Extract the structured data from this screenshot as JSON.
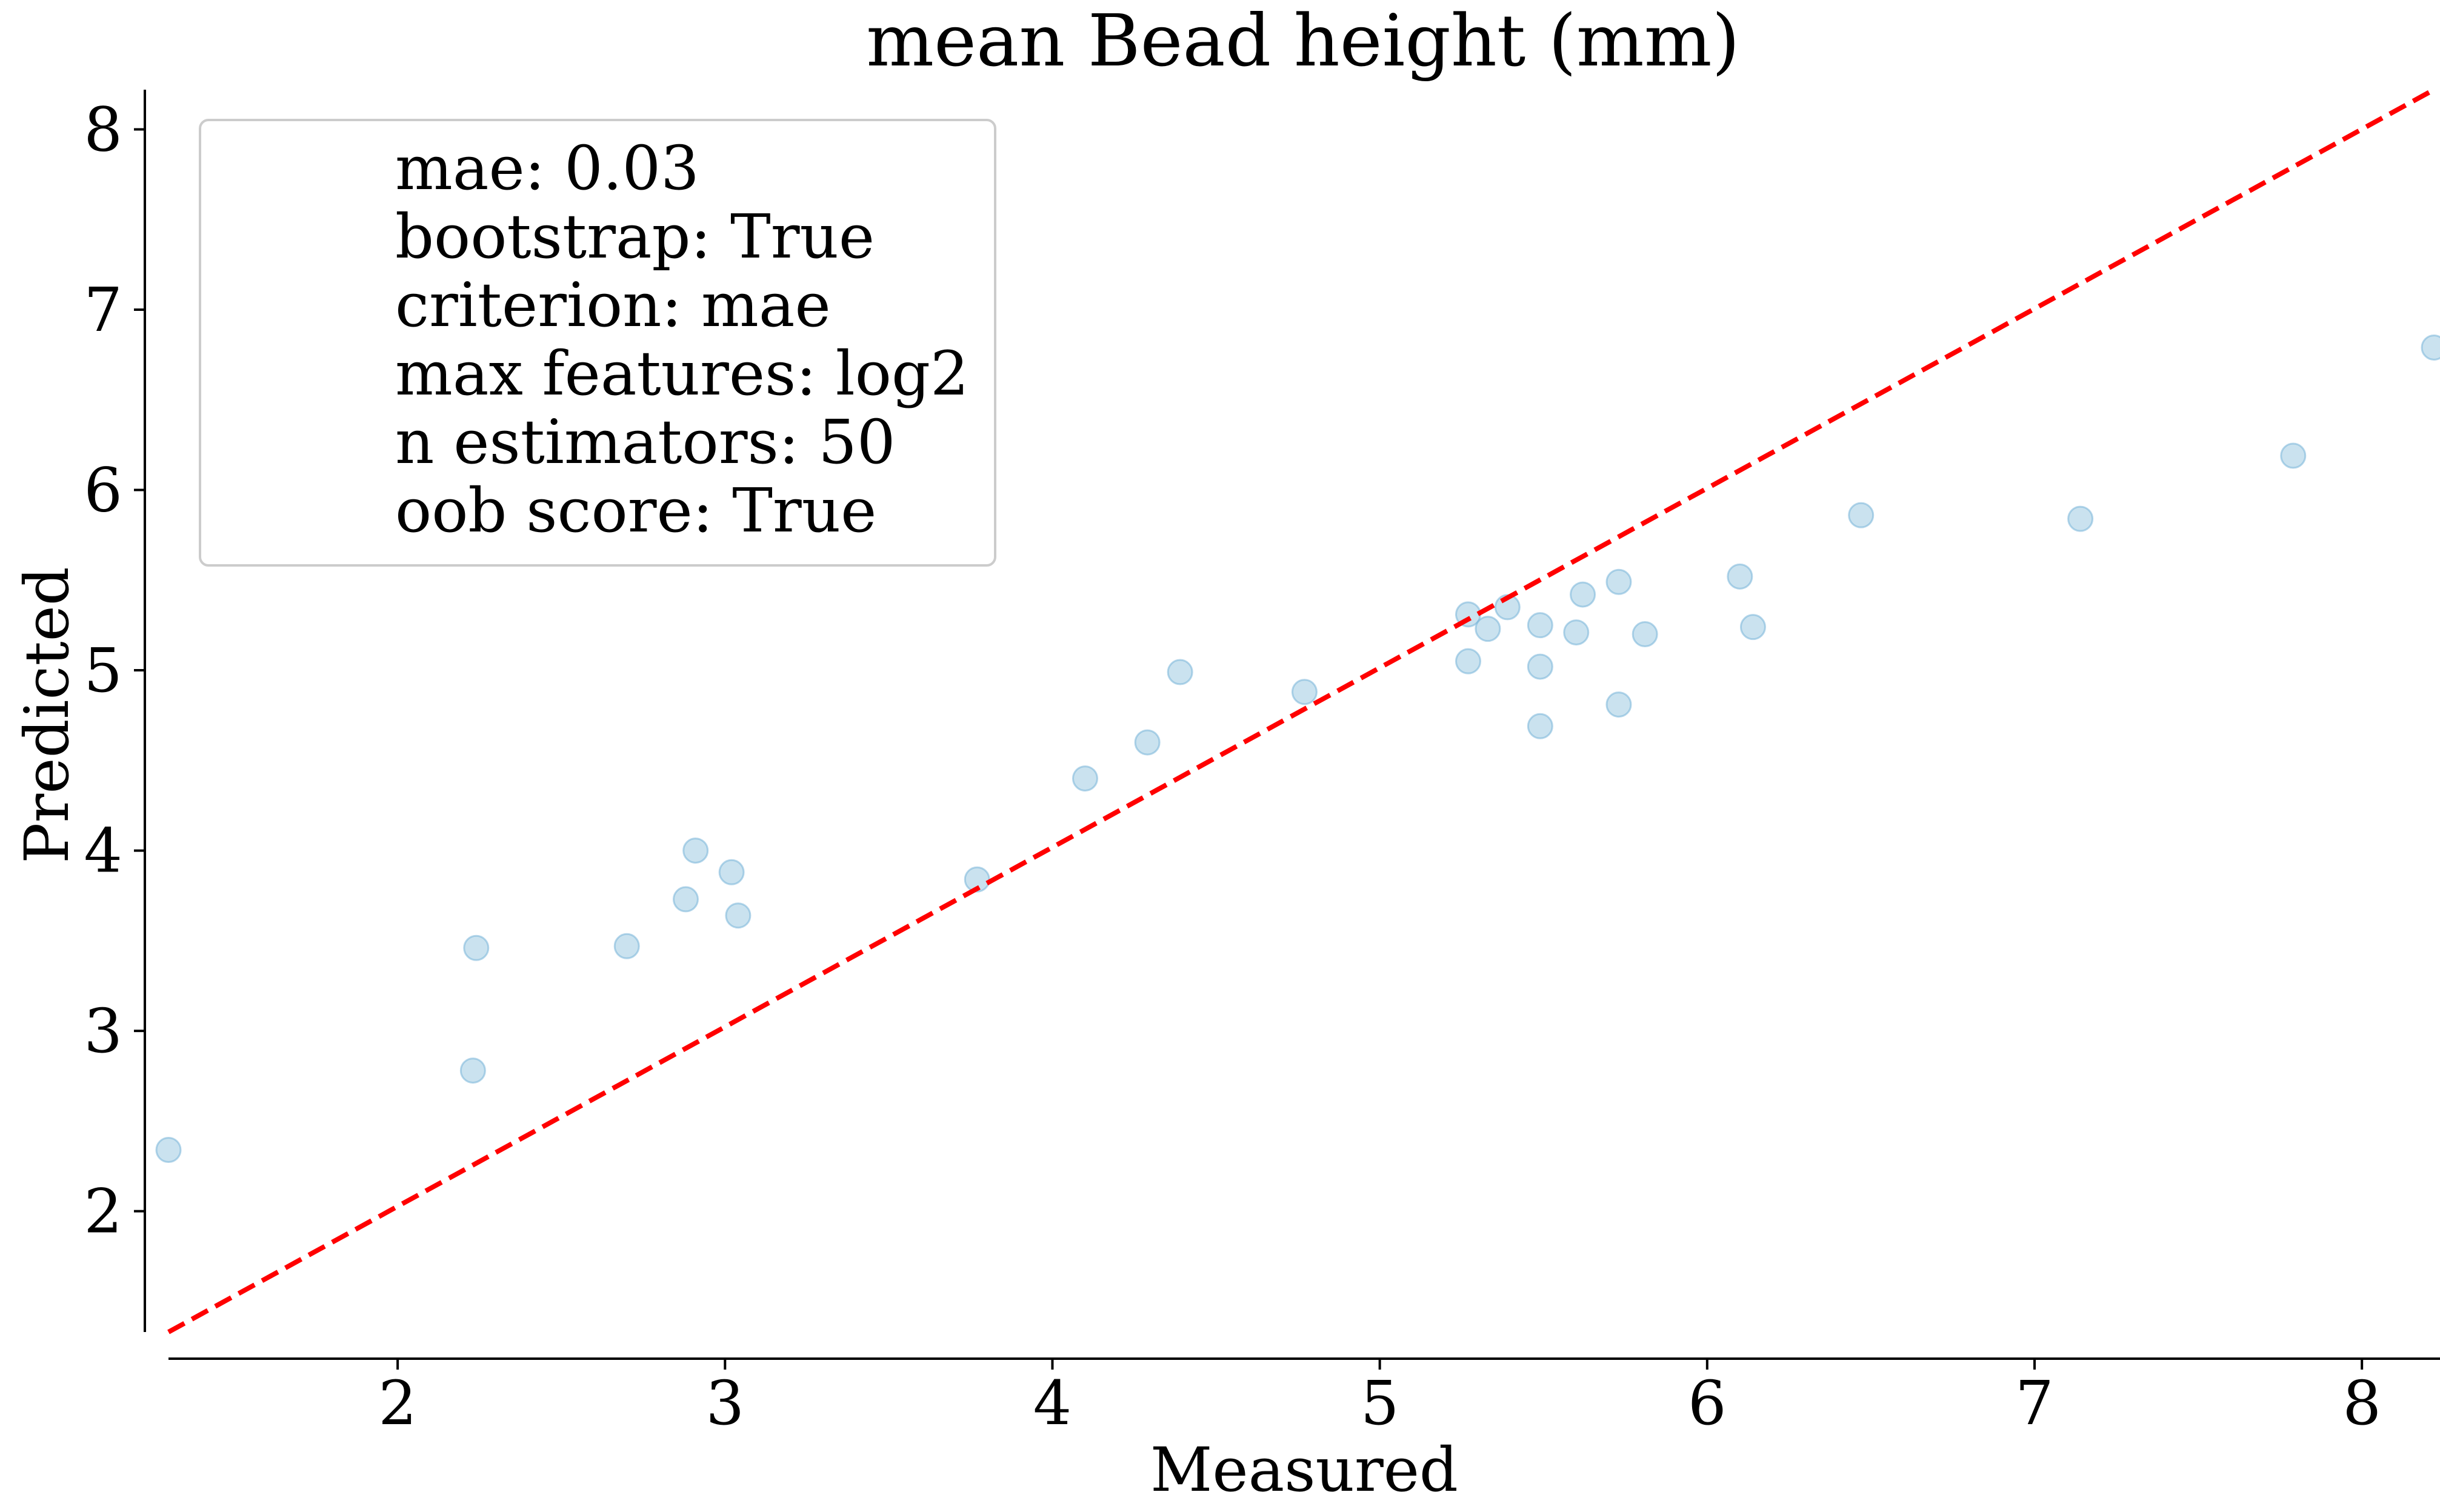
{
  "chart_data": {
    "type": "scatter",
    "title": "mean Bead height (mm)",
    "xlabel": "Measured",
    "ylabel": "Predicted",
    "xlim": [
      1.3,
      8.22
    ],
    "ylim": [
      1.33,
      8.22
    ],
    "x_ticks": [
      2,
      3,
      4,
      5,
      6,
      7,
      8
    ],
    "y_ticks": [
      2,
      3,
      4,
      5,
      6,
      7,
      8
    ],
    "grid": false,
    "points": [
      {
        "x": 1.3,
        "y": 2.34
      },
      {
        "x": 2.23,
        "y": 2.78
      },
      {
        "x": 2.24,
        "y": 3.46
      },
      {
        "x": 2.7,
        "y": 3.47
      },
      {
        "x": 2.88,
        "y": 3.73
      },
      {
        "x": 2.91,
        "y": 4.0
      },
      {
        "x": 3.02,
        "y": 3.88
      },
      {
        "x": 3.04,
        "y": 3.64
      },
      {
        "x": 3.77,
        "y": 3.84
      },
      {
        "x": 4.1,
        "y": 4.4
      },
      {
        "x": 4.29,
        "y": 4.6
      },
      {
        "x": 4.39,
        "y": 4.99
      },
      {
        "x": 4.77,
        "y": 4.88
      },
      {
        "x": 5.27,
        "y": 5.31
      },
      {
        "x": 5.27,
        "y": 5.05
      },
      {
        "x": 5.33,
        "y": 5.23
      },
      {
        "x": 5.39,
        "y": 5.35
      },
      {
        "x": 5.49,
        "y": 5.25
      },
      {
        "x": 5.49,
        "y": 5.02
      },
      {
        "x": 5.49,
        "y": 4.69
      },
      {
        "x": 5.6,
        "y": 5.21
      },
      {
        "x": 5.62,
        "y": 5.42
      },
      {
        "x": 5.73,
        "y": 5.49
      },
      {
        "x": 5.73,
        "y": 4.81
      },
      {
        "x": 5.81,
        "y": 5.2
      },
      {
        "x": 6.1,
        "y": 5.52
      },
      {
        "x": 6.14,
        "y": 5.24
      },
      {
        "x": 6.47,
        "y": 5.86
      },
      {
        "x": 7.14,
        "y": 5.84
      },
      {
        "x": 7.79,
        "y": 6.19
      },
      {
        "x": 8.22,
        "y": 6.79
      }
    ],
    "reference_line": {
      "from": [
        1.3,
        1.33
      ],
      "to": [
        8.22,
        8.22
      ],
      "style": "dashed"
    },
    "legend": {
      "placement": "top-left",
      "entries": [
        "mae: 0.03",
        "bootstrap: True",
        "criterion: mae",
        "max features: log2",
        "n estimators: 50",
        "oob score: True"
      ]
    },
    "colors": {
      "points": "#9ecae1",
      "points_edge": "#6baed6",
      "reference_line": "#ff0000"
    }
  }
}
